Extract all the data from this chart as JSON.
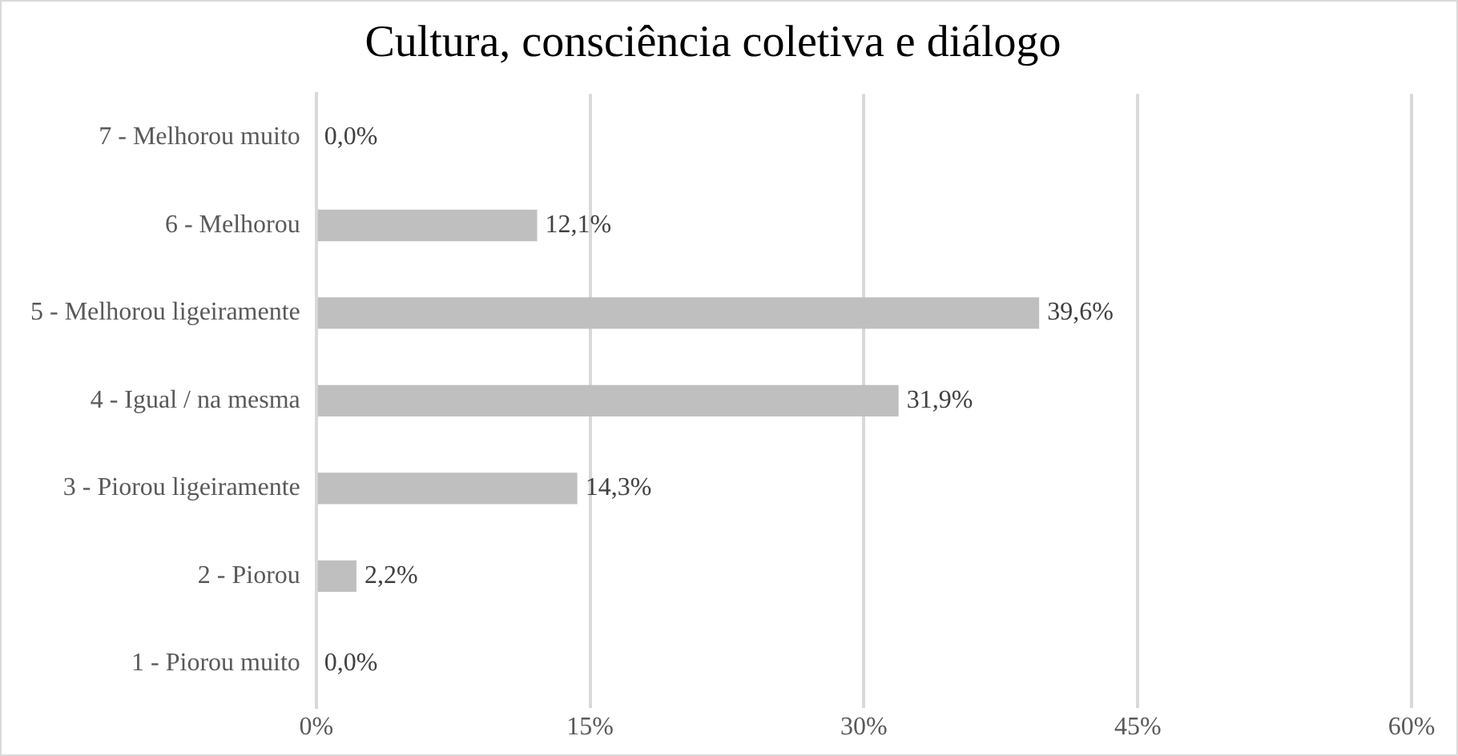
{
  "chart_data": {
    "type": "bar",
    "orientation": "horizontal",
    "title": "Cultura, consciência coletiva e diálogo",
    "categories": [
      "7 - Melhorou muito",
      "6 - Melhorou",
      "5 - Melhorou ligeiramente",
      "4 - Igual / na mesma",
      "3 - Piorou ligeiramente",
      "2 - Piorou",
      "1 - Piorou muito"
    ],
    "values": [
      0,
      12.1,
      39.6,
      31.9,
      14.3,
      2.2,
      0
    ],
    "value_labels": [
      "0,0%",
      "12,1%",
      "39,6%",
      "31,9%",
      "14,3%",
      "2,2%",
      "0,0%"
    ],
    "color": "#bfbfbf",
    "xlim": [
      0,
      60
    ],
    "xticks": [
      {
        "value": 0,
        "label": "0%"
      },
      {
        "value": 15,
        "label": "15%"
      },
      {
        "value": 30,
        "label": "30%"
      },
      {
        "value": 45,
        "label": "45%"
      },
      {
        "value": 60,
        "label": "60%"
      }
    ],
    "grid": "x",
    "legend": false
  }
}
